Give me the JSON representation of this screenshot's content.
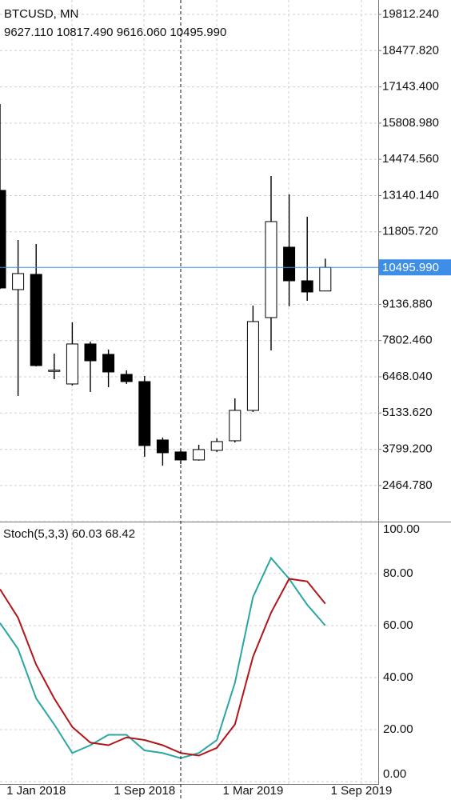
{
  "chart_data": [
    {
      "type": "candlestick",
      "title": "BTCUSD, MN",
      "subtitle": "9627.110 10817.490 9616.060 10495.990",
      "open": [
        13332,
        9679,
        10239,
        6700,
        6203,
        7676,
        7293,
        6556,
        6291,
        4141,
        3700,
        3405,
        3759,
        4112,
        5231,
        8648,
        11240,
        10003,
        9627.11
      ],
      "high": [
        16513,
        11506,
        11358,
        7323,
        8471,
        7765,
        7470,
        6704,
        6497,
        4230,
        3788,
        3965,
        4200,
        5673,
        9090,
        13862,
        13184,
        12360,
        10817.49
      ],
      "low": [
        9700,
        5761,
        6850,
        6380,
        6150,
        5908,
        6085,
        6203,
        3523,
        3198,
        3257,
        3380,
        3700,
        4050,
        5170,
        7440,
        9060,
        9267,
        9616.06
      ],
      "close": [
        9738,
        10268,
        6880,
        6710,
        7676,
        7057,
        6645,
        6291,
        3935,
        3670,
        3405,
        3788,
        4082,
        5231,
        8501,
        12183,
        10003,
        9590,
        10495.99
      ],
      "up_color": "#ffffff",
      "down_color": "#000000",
      "ylim": [
        1194,
        20342
      ],
      "yticks": [
        {
          "value": 19812.24,
          "label": "19812.240"
        },
        {
          "value": 18477.82,
          "label": "18477.820"
        },
        {
          "value": 17143.4,
          "label": "17143.400"
        },
        {
          "value": 15808.98,
          "label": "15808.980"
        },
        {
          "value": 14474.56,
          "label": "14474.560"
        },
        {
          "value": 13140.14,
          "label": "13140.140"
        },
        {
          "value": 11805.72,
          "label": "11805.720"
        },
        {
          "value": 9136.88,
          "label": "9136.880"
        },
        {
          "value": 7802.46,
          "label": "7802.460"
        },
        {
          "value": 6468.04,
          "label": "6468.040"
        },
        {
          "value": 5133.62,
          "label": "5133.620"
        },
        {
          "value": 3799.2,
          "label": "3799.200"
        },
        {
          "value": 2464.78,
          "label": "2464.780"
        }
      ],
      "current_price": {
        "value": 10495.99,
        "label": "10495.990"
      },
      "current_color": "#3d8ee6",
      "grid": true
    },
    {
      "type": "line",
      "title": "Stoch(5,3,3) 60.03 68.42",
      "series": [
        {
          "color": "#2aa7a3",
          "values": [
            61,
            51,
            32,
            22,
            11,
            14,
            18,
            18,
            12,
            11,
            9,
            11,
            16,
            38,
            71,
            86,
            78,
            68,
            60.03
          ]
        },
        {
          "color": "#b0161a",
          "values": [
            74,
            63,
            45,
            32,
            21,
            15,
            14,
            17,
            16,
            14,
            11,
            10,
            13,
            22,
            48,
            65,
            78,
            77,
            68.42
          ]
        }
      ],
      "ylim": [
        0,
        100
      ],
      "yticks": [
        {
          "value": 100,
          "label": "100.00"
        },
        {
          "value": 80,
          "label": "80.00"
        },
        {
          "value": 60,
          "label": "60.00"
        },
        {
          "value": 40,
          "label": "40.00"
        },
        {
          "value": 20,
          "label": "20.00"
        },
        {
          "value": 0,
          "label": "0.00"
        }
      ],
      "x_labels": [
        "1 Jan 2018",
        "1 Sep 2018",
        "1 Mar 2019",
        "1 Sep 2019"
      ],
      "grid": true
    }
  ]
}
